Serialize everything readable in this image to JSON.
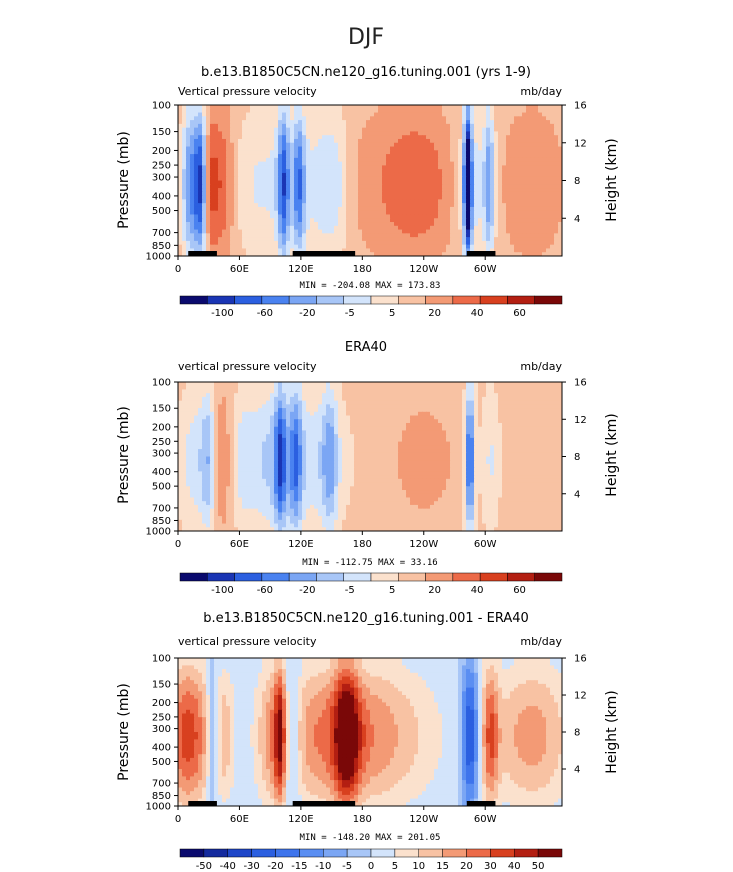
{
  "page": {
    "season": "DJF"
  },
  "chart_data": [
    {
      "type": "heatmap",
      "title": "b.e13.B1850C5CN.ne120_g16.tuning.001 (yrs 1-9)",
      "left_label": "Vertical pressure velocity",
      "right_label": "mb/day",
      "ylabel": "Pressure (mb)",
      "y2label": "Height (km)",
      "xticks": [
        "0",
        "60E",
        "120E",
        "180",
        "120W",
        "60W"
      ],
      "xtick_values": [
        0,
        60,
        120,
        180,
        240,
        300
      ],
      "xlim": [
        0,
        375
      ],
      "yticks": [
        "100",
        "150",
        "200",
        "250",
        "300",
        "400",
        "500",
        "700",
        "850",
        "1000"
      ],
      "ytick_values": [
        100,
        150,
        200,
        250,
        300,
        400,
        500,
        700,
        850,
        1000
      ],
      "ylim": [
        1000,
        100
      ],
      "y2ticks": [
        "4",
        "8",
        "12",
        "16"
      ],
      "y2tick_values": [
        4,
        8,
        12,
        16
      ],
      "stats": "MIN = -204.08  MAX = 173.83",
      "colorbar_labels": [
        "-100",
        "-60",
        "-20",
        "-5",
        "5",
        "20",
        "40",
        "60"
      ],
      "colorbar_colors": [
        "#0a0a6e",
        "#1a35b4",
        "#2b5fe0",
        "#4a82f0",
        "#7ba6f4",
        "#a8c6f7",
        "#d3e4fb",
        "#fbe1cd",
        "#f8c2a3",
        "#f39a75",
        "#ec6a48",
        "#d8401f",
        "#b31f12",
        "#7a0808"
      ],
      "land_segments": [
        [
          10,
          38
        ],
        [
          112,
          173
        ],
        [
          282,
          310
        ]
      ],
      "features": [
        {
          "x": 12,
          "w": 8,
          "v": -60
        },
        {
          "x": 22,
          "w": 6,
          "v": -80
        },
        {
          "x": 32,
          "w": 6,
          "v": 20
        },
        {
          "x": 42,
          "w": 14,
          "v": 40
        },
        {
          "x": 85,
          "w": 45,
          "v": -22
        },
        {
          "x": 103,
          "w": 6,
          "v": -70
        },
        {
          "x": 118,
          "w": 6,
          "v": -60
        },
        {
          "x": 140,
          "w": 20,
          "v": -20
        },
        {
          "x": 155,
          "w": 14,
          "v": -18
        },
        {
          "x": 215,
          "w": 50,
          "v": 20
        },
        {
          "x": 240,
          "w": 30,
          "v": 15
        },
        {
          "x": 290,
          "w": 18,
          "v": -28
        },
        {
          "x": 283,
          "w": 4,
          "v": -120
        },
        {
          "x": 304,
          "w": 5,
          "v": -50
        },
        {
          "x": 345,
          "w": 30,
          "v": 20
        }
      ]
    },
    {
      "type": "heatmap",
      "title": "ERA40",
      "left_label": "vertical pressure velocity",
      "right_label": "mb/day",
      "ylabel": "Pressure (mb)",
      "y2label": "Height (km)",
      "xticks": [
        "0",
        "60E",
        "120E",
        "180",
        "120W",
        "60W"
      ],
      "xtick_values": [
        0,
        60,
        120,
        180,
        240,
        300
      ],
      "xlim": [
        0,
        375
      ],
      "yticks": [
        "100",
        "150",
        "200",
        "250",
        "300",
        "400",
        "500",
        "700",
        "850",
        "1000"
      ],
      "ytick_values": [
        100,
        150,
        200,
        250,
        300,
        400,
        500,
        700,
        850,
        1000
      ],
      "ylim": [
        1000,
        100
      ],
      "y2ticks": [
        "4",
        "8",
        "12",
        "16"
      ],
      "y2tick_values": [
        4,
        8,
        12,
        16
      ],
      "stats": "MIN = -112.75  MAX =  33.16",
      "colorbar_labels": [
        "-100",
        "-60",
        "-20",
        "-5",
        "5",
        "20",
        "40",
        "60"
      ],
      "colorbar_colors": [
        "#0a0a6e",
        "#1a35b4",
        "#2b5fe0",
        "#4a82f0",
        "#7ba6f4",
        "#a8c6f7",
        "#d3e4fb",
        "#fbe1cd",
        "#f8c2a3",
        "#f39a75",
        "#ec6a48",
        "#d8401f",
        "#b31f12",
        "#7a0808"
      ],
      "land_segments": [],
      "features": [
        {
          "x": 15,
          "w": 16,
          "v": -25
        },
        {
          "x": 30,
          "w": 8,
          "v": -40
        },
        {
          "x": 42,
          "w": 10,
          "v": 22
        },
        {
          "x": 63,
          "w": 10,
          "v": -15
        },
        {
          "x": 85,
          "w": 25,
          "v": -25
        },
        {
          "x": 100,
          "w": 6,
          "v": -60
        },
        {
          "x": 125,
          "w": 40,
          "v": -28
        },
        {
          "x": 115,
          "w": 6,
          "v": -50
        },
        {
          "x": 148,
          "w": 8,
          "v": -40
        },
        {
          "x": 240,
          "w": 40,
          "v": 10
        },
        {
          "x": 285,
          "w": 5,
          "v": -80
        },
        {
          "x": 305,
          "w": 10,
          "v": -22
        },
        {
          "x": 350,
          "w": 20,
          "v": 5
        }
      ]
    },
    {
      "type": "heatmap",
      "title": "b.e13.B1850C5CN.ne120_g16.tuning.001 - ERA40",
      "left_label": "vertical pressure velocity",
      "right_label": "mb/day",
      "ylabel": "Pressure (mb)",
      "y2label": "Height (km)",
      "xticks": [
        "0",
        "60E",
        "120E",
        "180",
        "120W",
        "60W"
      ],
      "xtick_values": [
        0,
        60,
        120,
        180,
        240,
        300
      ],
      "xlim": [
        0,
        375
      ],
      "yticks": [
        "100",
        "150",
        "200",
        "250",
        "300",
        "400",
        "500",
        "700",
        "850",
        "1000"
      ],
      "ytick_values": [
        100,
        150,
        200,
        250,
        300,
        400,
        500,
        700,
        850,
        1000
      ],
      "ylim": [
        1000,
        100
      ],
      "y2ticks": [
        "4",
        "8",
        "12",
        "16"
      ],
      "y2tick_values": [
        4,
        8,
        12,
        16
      ],
      "stats": "MIN = -148.20  MAX = 201.05",
      "colorbar_labels": [
        "-50",
        "-40",
        "-30",
        "-20",
        "-15",
        "-10",
        "-5",
        "0",
        "5",
        "10",
        "15",
        "20",
        "30",
        "40",
        "50"
      ],
      "colorbar_colors": [
        "#0a0a6e",
        "#142a9e",
        "#1e46c8",
        "#2b5fe0",
        "#3e74ec",
        "#5a8ef2",
        "#7ba6f4",
        "#a8c6f7",
        "#d3e4fb",
        "#fbe1cd",
        "#f8c2a3",
        "#f39a75",
        "#ec6a48",
        "#d8401f",
        "#b31f12",
        "#7a0808"
      ],
      "land_segments": [
        [
          10,
          38
        ],
        [
          112,
          173
        ],
        [
          282,
          310
        ]
      ],
      "features": [
        {
          "x": 10,
          "w": 22,
          "v": 40
        },
        {
          "x": 34,
          "w": 6,
          "v": -20
        },
        {
          "x": 45,
          "w": 10,
          "v": 15
        },
        {
          "x": 90,
          "w": 12,
          "v": 15
        },
        {
          "x": 100,
          "w": 6,
          "v": 40
        },
        {
          "x": 110,
          "w": 10,
          "v": -20
        },
        {
          "x": 150,
          "w": 60,
          "v": 30
        },
        {
          "x": 165,
          "w": 12,
          "v": 40
        },
        {
          "x": 215,
          "w": 50,
          "v": 12
        },
        {
          "x": 285,
          "w": 8,
          "v": -40
        },
        {
          "x": 305,
          "w": 8,
          "v": 30
        },
        {
          "x": 345,
          "w": 40,
          "v": 25
        }
      ]
    }
  ]
}
